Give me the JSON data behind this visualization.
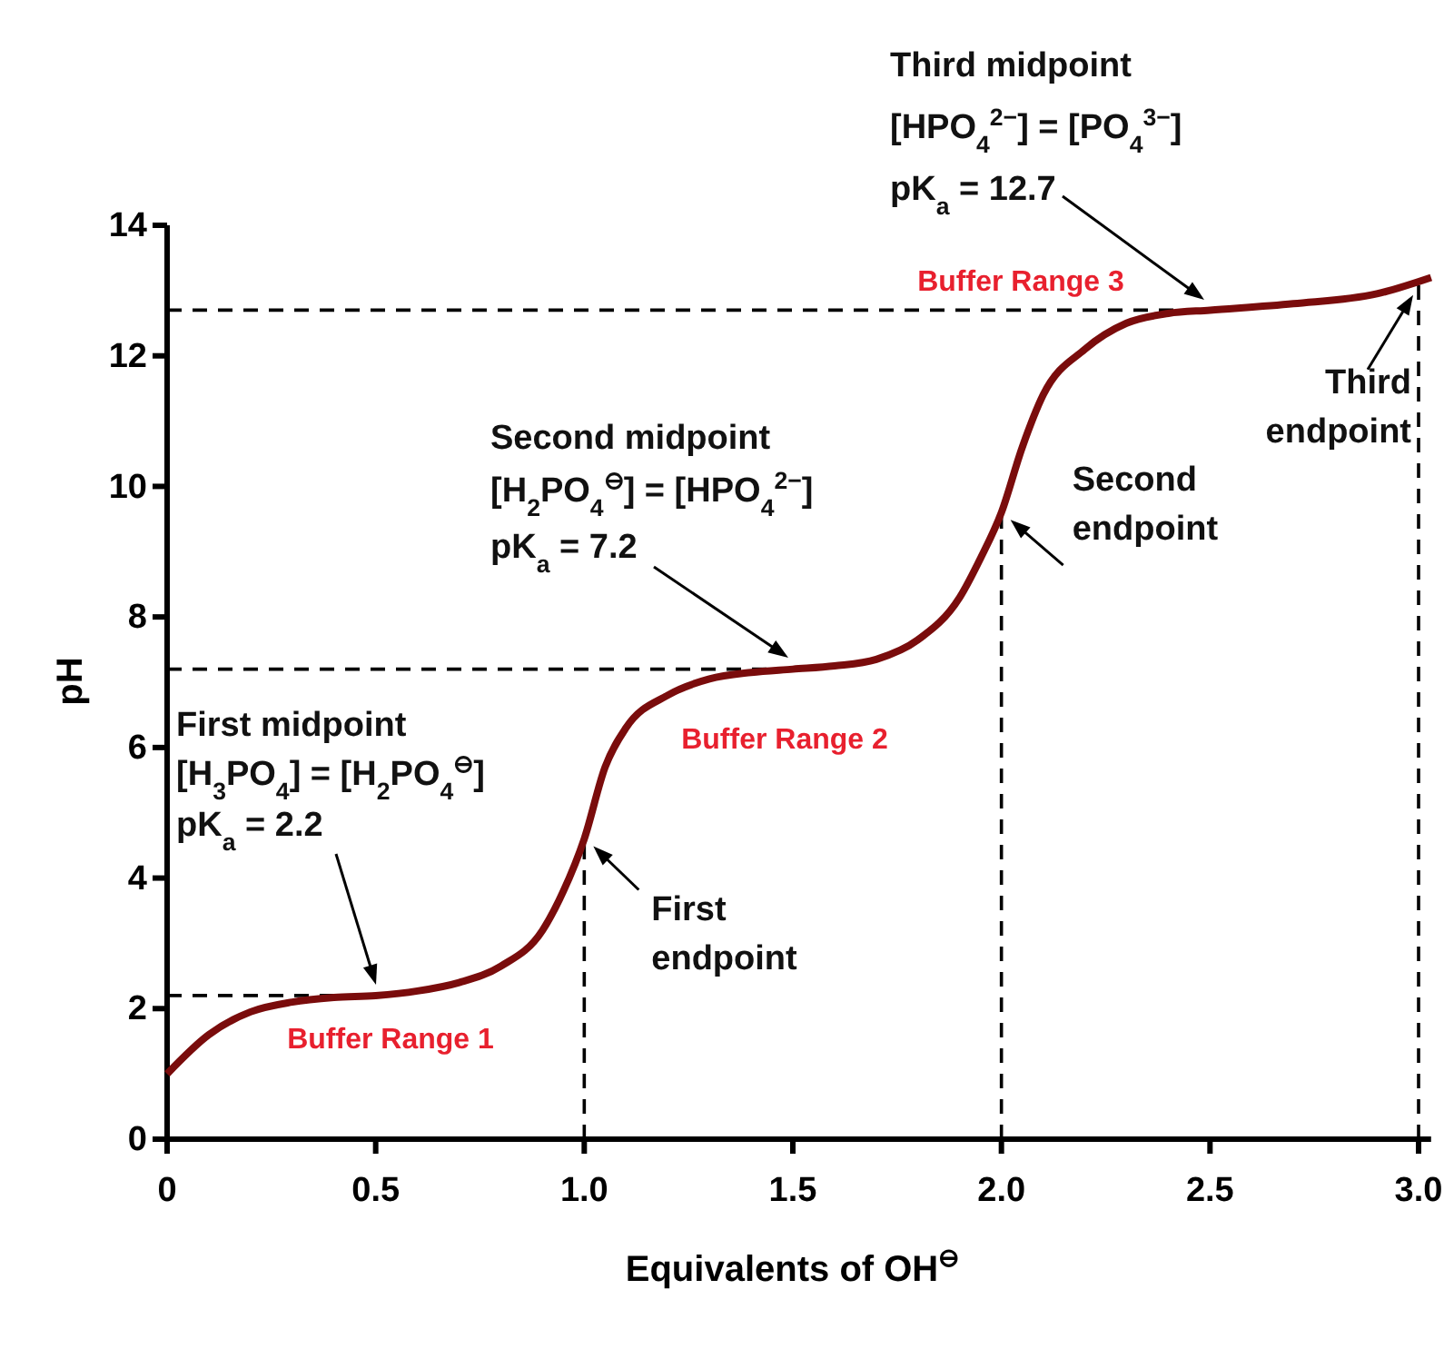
{
  "chart_data": {
    "type": "line",
    "xlabel": "Equivalents of OH$^{⊖}$",
    "ylabel": "pH",
    "x": [
      0,
      0.1,
      0.2,
      0.3,
      0.4,
      0.5,
      0.6,
      0.7,
      0.8,
      0.9,
      0.95,
      1.0,
      1.05,
      1.1,
      1.2,
      1.3,
      1.4,
      1.5,
      1.6,
      1.7,
      1.8,
      1.9,
      1.95,
      2.0,
      2.05,
      2.1,
      2.2,
      2.3,
      2.4,
      2.5,
      2.7,
      2.9,
      3.03
    ],
    "series": [
      {
        "color": "#7a0c0c",
        "values": [
          1.0,
          1.6,
          1.95,
          2.1,
          2.17,
          2.2,
          2.27,
          2.4,
          2.65,
          3.2,
          3.8,
          4.6,
          5.7,
          6.3,
          6.8,
          7.05,
          7.15,
          7.2,
          7.25,
          7.35,
          7.65,
          8.3,
          8.9,
          9.6,
          10.6,
          11.4,
          12.1,
          12.5,
          12.65,
          12.7,
          12.8,
          12.95,
          13.2
        ]
      }
    ],
    "xlim": [
      0,
      3.03
    ],
    "ylim": [
      0,
      14
    ],
    "xticks": [
      0,
      0.5,
      {
        "value": 1,
        "label": "1.0"
      },
      1.5,
      {
        "value": 2,
        "label": "2.0"
      },
      2.5,
      {
        "value": 3,
        "label": "3.0"
      }
    ],
    "yticks": [
      0,
      2,
      4,
      6,
      8,
      10,
      12,
      14
    ],
    "grid": false,
    "marker": "none",
    "line_style": "solid",
    "ref_lines": [
      {
        "axis": "y",
        "value": 2.2,
        "line_style": "dashed"
      },
      {
        "axis": "y",
        "value": 7.2,
        "line_style": "dashed"
      },
      {
        "axis": "y",
        "value": 12.7,
        "line_style": "dashed"
      },
      {
        "axis": "x",
        "value": 1,
        "line_style": "dashed"
      },
      {
        "axis": "x",
        "value": 2,
        "line_style": "dashed"
      },
      {
        "axis": "x",
        "value": 3,
        "line_style": "dashed"
      }
    ],
    "annotations": [
      "First midpoint",
      "[H$_{3}$PO$_{4}$] = [H$_{2}$PO$_{4}$$^{⊖}$]",
      "pK$_{a}$ = 2.2",
      {
        "text": "First\nendpoint",
        "x": 1.0,
        "y": 4.6
      },
      "Second midpoint",
      "[H$_{2}$PO$_{4}$$^{⊖}$] = [HPO$_{4}$$^{2−}$]",
      "pK$_{a}$ = 7.2",
      {
        "text": "Second\nendpoint",
        "x": 2.0,
        "y": 9.6
      },
      "Third midpoint",
      "[HPO$_{4}$$^{2−}$] = [PO$_{4}$$^{3−}$]",
      "pK$_{a}$ = 12.7",
      {
        "text": "Third\nendpoint",
        "x": 3.0,
        "y": 13.1
      },
      "Buffer Range 1",
      "Buffer Range 2",
      "Buffer Range 3"
    ]
  }
}
